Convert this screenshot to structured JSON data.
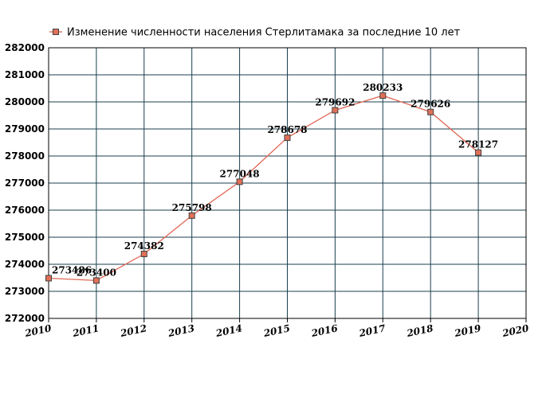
{
  "chart_data": {
    "type": "line",
    "title": "",
    "xlabel": "",
    "ylabel": "",
    "x_ticks": [
      "2010",
      "2011",
      "2012",
      "2013",
      "2014",
      "2015",
      "2016",
      "2017",
      "2018",
      "2019",
      "2020"
    ],
    "xlim": [
      2010,
      2020
    ],
    "y_ticks": [
      "272000",
      "273000",
      "274000",
      "275000",
      "276000",
      "277000",
      "278000",
      "279000",
      "280000",
      "281000",
      "282000"
    ],
    "ylim": [
      272000,
      282000
    ],
    "grid": true,
    "legend_position": "top-left",
    "series": [
      {
        "name": "Изменение численности населения Стерлитамака за последние 10 лет",
        "x": [
          2010,
          2011,
          2012,
          2013,
          2014,
          2015,
          2016,
          2017,
          2018,
          2019
        ],
        "y": [
          273486,
          273400,
          274382,
          275798,
          277048,
          278678,
          279692,
          280233,
          279626,
          278127
        ],
        "labels": [
          "273486",
          "273400",
          "274382",
          "275798",
          "277048",
          "278678",
          "279692",
          "280233",
          "279626",
          "278127"
        ]
      }
    ],
    "colors": {
      "line": "#e06655",
      "marker_fill": "#e07058",
      "marker_stroke": "#404040",
      "grid": "#1b3f4e",
      "frame": "#000000"
    }
  }
}
